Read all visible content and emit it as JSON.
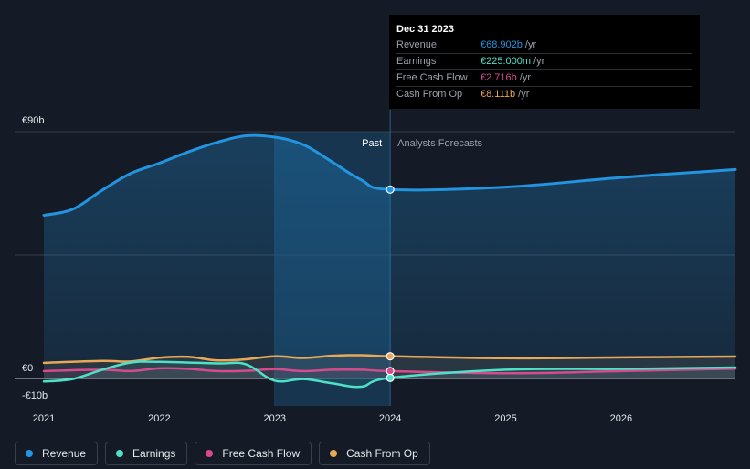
{
  "chart_data": {
    "type": "line",
    "currency": "€",
    "y_ticks": [
      {
        "value": 90,
        "label": "€90b"
      },
      {
        "value": 0,
        "label": "€0"
      },
      {
        "value": -10,
        "label": "-€10b"
      }
    ],
    "x_ticks": [
      "2021",
      "2022",
      "2023",
      "2024",
      "2025",
      "2026"
    ],
    "xlim": [
      2021.0,
      2026.99
    ],
    "ylim": [
      -10,
      90
    ],
    "past_end": 2024.0,
    "highlight_start": 2023.0,
    "region_labels": {
      "past": "Past",
      "forecast": "Analysts Forecasts"
    },
    "series": [
      {
        "name": "Revenue",
        "color": "#2394df",
        "values": [
          [
            2021.0,
            59.5
          ],
          [
            2021.25,
            61.7
          ],
          [
            2021.5,
            68.5
          ],
          [
            2021.75,
            74.7
          ],
          [
            2022.0,
            78.5
          ],
          [
            2022.25,
            82.6
          ],
          [
            2022.5,
            86.1
          ],
          [
            2022.75,
            88.5
          ],
          [
            2023.0,
            88.0
          ],
          [
            2023.25,
            85.2
          ],
          [
            2023.5,
            78.9
          ],
          [
            2023.75,
            72.4
          ],
          [
            2024.0,
            68.9
          ],
          [
            2025.0,
            69.8
          ],
          [
            2026.0,
            73.3
          ],
          [
            2027.0,
            76.2
          ]
        ]
      },
      {
        "name": "Earnings",
        "color": "#4fe0c8",
        "values": [
          [
            2021.0,
            -1.1
          ],
          [
            2021.25,
            -0.2
          ],
          [
            2021.5,
            3.1
          ],
          [
            2021.75,
            5.8
          ],
          [
            2022.0,
            6.1
          ],
          [
            2022.5,
            5.5
          ],
          [
            2022.75,
            5.2
          ],
          [
            2023.0,
            -0.8
          ],
          [
            2023.25,
            -0.2
          ],
          [
            2023.5,
            -1.8
          ],
          [
            2023.75,
            -3.0
          ],
          [
            2024.0,
            0.225
          ],
          [
            2025.0,
            3.2
          ],
          [
            2026.0,
            3.5
          ],
          [
            2027.0,
            4.0
          ]
        ]
      },
      {
        "name": "Free Cash Flow",
        "color": "#d54b8c",
        "values": [
          [
            2021.0,
            2.7
          ],
          [
            2021.5,
            3.2
          ],
          [
            2021.75,
            2.7
          ],
          [
            2022.0,
            3.7
          ],
          [
            2022.25,
            3.5
          ],
          [
            2022.5,
            2.7
          ],
          [
            2022.75,
            2.8
          ],
          [
            2023.0,
            3.4
          ],
          [
            2023.25,
            2.7
          ],
          [
            2023.5,
            3.2
          ],
          [
            2023.75,
            3.2
          ],
          [
            2024.0,
            2.716
          ],
          [
            2025.0,
            1.9
          ],
          [
            2026.0,
            2.7
          ],
          [
            2027.0,
            3.6
          ]
        ]
      },
      {
        "name": "Cash From Op",
        "color": "#e8a857",
        "values": [
          [
            2021.0,
            5.7
          ],
          [
            2021.5,
            6.4
          ],
          [
            2021.75,
            6.2
          ],
          [
            2022.0,
            7.6
          ],
          [
            2022.25,
            7.9
          ],
          [
            2022.5,
            6.6
          ],
          [
            2022.75,
            7.0
          ],
          [
            2023.0,
            8.1
          ],
          [
            2023.25,
            7.5
          ],
          [
            2023.5,
            8.3
          ],
          [
            2023.75,
            8.5
          ],
          [
            2024.0,
            8.111
          ],
          [
            2025.0,
            7.4
          ],
          [
            2026.0,
            7.7
          ],
          [
            2027.0,
            8.0
          ]
        ]
      }
    ]
  },
  "tooltip": {
    "date": "Dec 31 2023",
    "rows": [
      {
        "name": "Revenue",
        "value": "€68.902b",
        "unit": "/yr",
        "color": "#2394df"
      },
      {
        "name": "Earnings",
        "value": "€225.000m",
        "unit": "/yr",
        "color": "#4fe0c8"
      },
      {
        "name": "Free Cash Flow",
        "value": "€2.716b",
        "unit": "/yr",
        "color": "#d54b8c"
      },
      {
        "name": "Cash From Op",
        "value": "€8.111b",
        "unit": "/yr",
        "color": "#e8a857"
      }
    ]
  },
  "legend": [
    {
      "label": "Revenue",
      "color": "#2394df"
    },
    {
      "label": "Earnings",
      "color": "#4fe0c8"
    },
    {
      "label": "Free Cash Flow",
      "color": "#d54b8c"
    },
    {
      "label": "Cash From Op",
      "color": "#e8a857"
    }
  ]
}
